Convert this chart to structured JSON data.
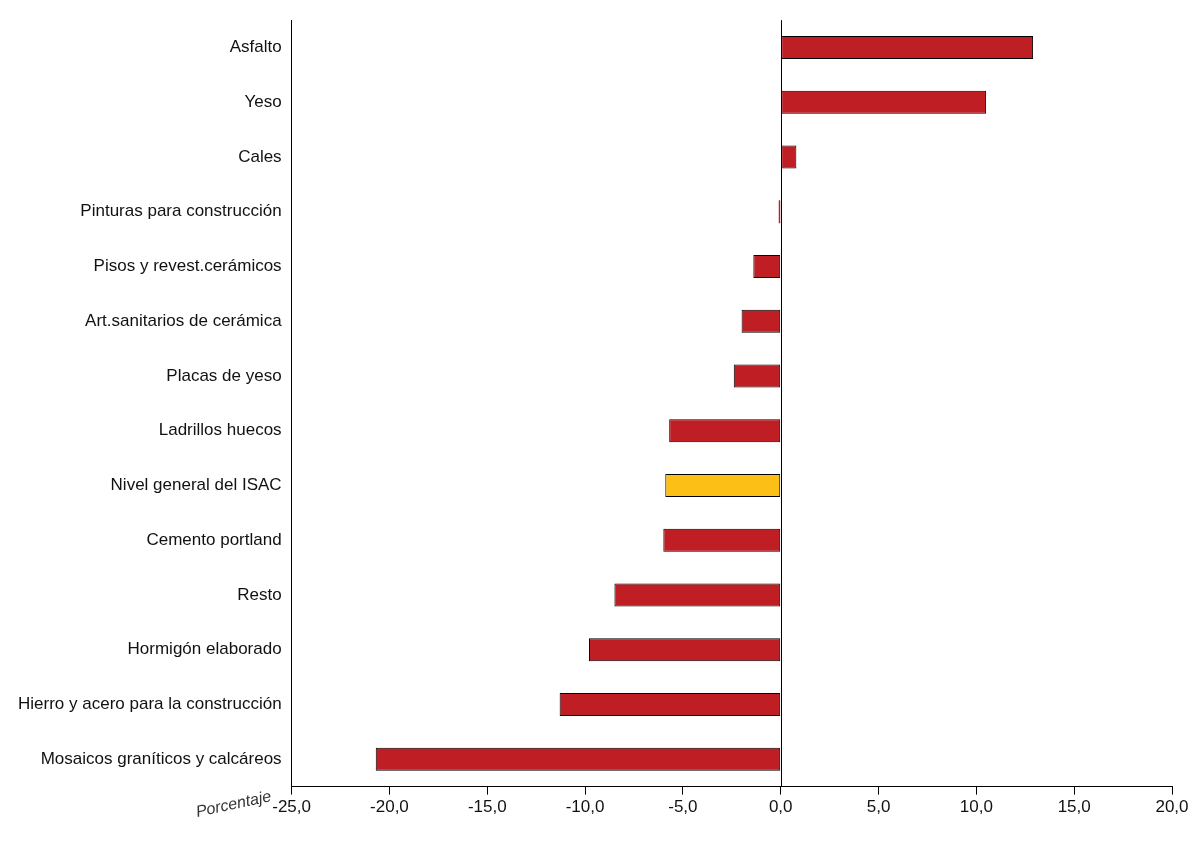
{
  "chart_data": {
    "type": "bar",
    "orientation": "horizontal",
    "xlabel": "Porcentaje",
    "categories": [
      "Asfalto",
      "Yeso",
      "Cales",
      "Pinturas para construcción",
      "Pisos y revest.cerámicos",
      "Art.sanitarios de cerámica",
      "Placas de yeso",
      "Ladrillos huecos",
      "Nivel general del ISAC",
      "Cemento portland",
      "Resto",
      "Hormigón elaborado",
      "Hierro y acero para la construcción",
      "Mosaicos graníticos y calcáreos"
    ],
    "values": [
      12.9,
      10.5,
      0.8,
      -0.1,
      -1.4,
      -2.0,
      -2.4,
      -5.7,
      -5.9,
      -6.0,
      -8.5,
      -9.8,
      -11.3,
      -20.7
    ],
    "colors": [
      "#be1e24",
      "#be1e24",
      "#be1e24",
      "#be1e24",
      "#be1e24",
      "#be1e24",
      "#be1e24",
      "#be1e24",
      "#fbbf16",
      "#be1e24",
      "#be1e24",
      "#be1e24",
      "#be1e24",
      "#be1e24"
    ],
    "xlim": [
      -25,
      20
    ],
    "xticks": [
      {
        "value": -25,
        "label": "-25,0"
      },
      {
        "value": -20,
        "label": "-20,0"
      },
      {
        "value": -15,
        "label": "-15,0"
      },
      {
        "value": -10,
        "label": "-10,0"
      },
      {
        "value": -5,
        "label": "-5,0"
      },
      {
        "value": 0,
        "label": "0,0"
      },
      {
        "value": 5,
        "label": "5,0"
      },
      {
        "value": 10,
        "label": "10,0"
      },
      {
        "value": 15,
        "label": "15,0"
      },
      {
        "value": 20,
        "label": "20,0"
      }
    ],
    "ref_lines": [
      {
        "axis": "x",
        "value": 0,
        "color": "#000000"
      }
    ],
    "grid": false,
    "legend": false
  }
}
